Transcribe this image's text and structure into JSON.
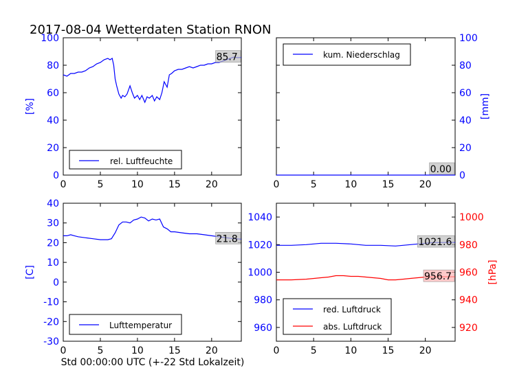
{
  "figure": {
    "title": "2017-08-04 Wetterdaten Station RNON",
    "xlabel": "Std 00:00:00 UTC (+-22 Std Lokalzeit)"
  },
  "colors": {
    "blue": "#0000ff",
    "red": "#ff0000",
    "black": "#000000",
    "annot_bg": "#bfbfbf",
    "annot_red_bg": "#ffb3b3"
  },
  "chart_data": [
    {
      "id": "humidity",
      "type": "line",
      "xlim": [
        0,
        24
      ],
      "ylim": [
        0,
        100
      ],
      "xticks": [
        0,
        5,
        10,
        15,
        20
      ],
      "yticks": [
        0,
        20,
        40,
        60,
        80,
        100
      ],
      "ylabel": "[%]",
      "ylabel_color": "#0000ff",
      "legend": {
        "location": "lower-left",
        "entries": [
          "rel. Luftfeuchte"
        ]
      },
      "annotation": "85.7",
      "series": [
        {
          "name": "rel. Luftfeuchte",
          "color": "#0000ff",
          "x": [
            0,
            0.5,
            1,
            1.5,
            2,
            2.5,
            3,
            3.5,
            4,
            4.5,
            5,
            5.5,
            6,
            6.3,
            6.6,
            6.8,
            7,
            7.2,
            7.5,
            7.8,
            8,
            8.3,
            8.6,
            9,
            9.3,
            9.6,
            10,
            10.3,
            10.6,
            11,
            11.3,
            11.6,
            12,
            12.3,
            12.6,
            13,
            13.3,
            13.6,
            14,
            14.3,
            14.6,
            15,
            15.5,
            16,
            16.5,
            17,
            17.5,
            18,
            18.5,
            19,
            19.5,
            20,
            20.5,
            21,
            21.5,
            22,
            22.5,
            23,
            23.5,
            24
          ],
          "y": [
            73,
            72,
            74,
            74,
            75,
            75,
            76,
            78,
            79,
            81,
            82,
            84,
            85,
            84,
            85,
            80,
            70,
            65,
            59,
            56,
            58,
            57,
            59,
            65,
            60,
            56,
            58,
            55,
            58,
            53,
            57,
            56,
            58,
            54,
            57,
            55,
            60,
            68,
            64,
            73,
            74,
            76,
            77,
            77,
            78,
            79,
            78,
            79,
            80,
            80,
            81,
            81,
            82,
            82,
            83,
            84,
            85,
            86,
            85.5,
            85.7
          ]
        }
      ]
    },
    {
      "id": "precip",
      "type": "line",
      "xlim": [
        0,
        24
      ],
      "ylim": [
        0,
        100
      ],
      "xticks": [
        0,
        5,
        10,
        15,
        20
      ],
      "yticks": [
        0,
        20,
        40,
        60,
        80,
        100
      ],
      "ylabel": "[mm]",
      "ylabel_color": "#0000ff",
      "ylabel_side": "right",
      "legend": {
        "location": "upper-left",
        "entries": [
          "kum. Niederschlag"
        ]
      },
      "annotation": "0.00",
      "series": [
        {
          "name": "kum. Niederschlag",
          "color": "#0000ff",
          "x": [
            0,
            24
          ],
          "y": [
            0,
            0
          ]
        }
      ]
    },
    {
      "id": "temperature",
      "type": "line",
      "xlim": [
        0,
        24
      ],
      "ylim": [
        -30,
        40
      ],
      "xticks": [
        0,
        5,
        10,
        15,
        20
      ],
      "yticks": [
        -30,
        -20,
        -10,
        0,
        10,
        20,
        30,
        40
      ],
      "ylabel": "[C]",
      "ylabel_color": "#0000ff",
      "legend": {
        "location": "lower-left",
        "entries": [
          "Lufttemperatur"
        ]
      },
      "annotation": "21.8",
      "series": [
        {
          "name": "Lufttemperatur",
          "color": "#0000ff",
          "x": [
            0,
            0.5,
            1,
            1.5,
            2,
            3,
            4,
            5,
            6,
            6.5,
            7,
            7.5,
            8,
            8.5,
            9,
            9.5,
            10,
            10.5,
            11,
            11.5,
            12,
            12.5,
            13,
            13.5,
            14,
            14.5,
            15,
            16,
            17,
            18,
            19,
            20,
            21,
            22,
            23,
            24
          ],
          "y": [
            23.5,
            23.5,
            24,
            23.5,
            23,
            22.5,
            22,
            21.5,
            21.5,
            22,
            25,
            29,
            30.5,
            30.5,
            30,
            31.5,
            32,
            33,
            32.5,
            31,
            32,
            31.5,
            32,
            28,
            27,
            25.5,
            25.5,
            25,
            24.5,
            24.5,
            24,
            23.5,
            23,
            22.5,
            22,
            21.8
          ]
        }
      ]
    },
    {
      "id": "pressure",
      "type": "line",
      "xlim": [
        0,
        24
      ],
      "ylim": [
        950,
        1050
      ],
      "ylim_right": [
        910,
        1010
      ],
      "xticks": [
        0,
        5,
        10,
        15,
        20
      ],
      "yticks": [
        960,
        980,
        1000,
        1020,
        1040
      ],
      "yticks_right": [
        920,
        940,
        960,
        980,
        1000
      ],
      "ylabel_right": "[hPa]",
      "ylabel_right_color": "#ff0000",
      "legend": {
        "location": "lower-left",
        "entries": [
          "red. Luftdruck",
          "abs. Luftdruck"
        ]
      },
      "annotations": [
        "1021.6",
        "956.7"
      ],
      "series": [
        {
          "name": "red. Luftdruck",
          "color": "#0000ff",
          "axis": "left",
          "x": [
            0,
            2,
            4,
            6,
            8,
            10,
            12,
            14,
            16,
            17,
            18,
            19,
            20,
            21,
            22,
            23,
            24
          ],
          "y": [
            1019.5,
            1019.5,
            1020,
            1021,
            1021,
            1020.5,
            1019.5,
            1019.5,
            1019,
            1019.5,
            1020,
            1020.5,
            1021,
            1021.5,
            1021.5,
            1021.6,
            1021.6
          ]
        },
        {
          "name": "abs. Luftdruck",
          "color": "#ff0000",
          "axis": "right",
          "x": [
            0,
            2,
            4,
            6,
            7,
            8,
            9,
            10,
            11,
            12,
            13,
            14,
            15,
            16,
            17,
            18,
            19,
            20,
            21,
            22,
            23,
            24
          ],
          "y": [
            954.5,
            954.5,
            955,
            956,
            956.5,
            957.5,
            957.5,
            957,
            957,
            956.5,
            956,
            955.5,
            954.5,
            954.5,
            955,
            955.5,
            956,
            956.5,
            956.5,
            956.7,
            956.7,
            956.7
          ]
        }
      ]
    }
  ]
}
